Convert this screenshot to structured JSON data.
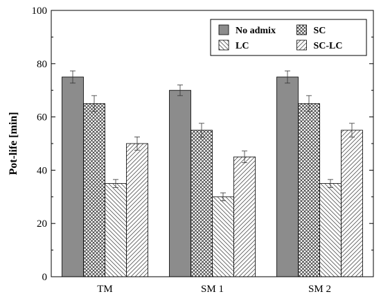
{
  "chart_data": {
    "type": "bar",
    "categories": [
      "TM",
      "SM 1",
      "SM 2"
    ],
    "series": [
      {
        "name": "No admix",
        "values": [
          75,
          70,
          75
        ],
        "errors": [
          2.3,
          2.0,
          2.3
        ],
        "pattern": "solid",
        "color": "#8c8c8c"
      },
      {
        "name": "SC",
        "values": [
          65,
          55,
          65
        ],
        "errors": [
          3.0,
          2.6,
          3.0
        ],
        "pattern": "crosshatch",
        "color": "#333333"
      },
      {
        "name": "LC",
        "values": [
          35,
          30,
          35
        ],
        "errors": [
          1.5,
          1.5,
          1.5
        ],
        "pattern": "backslash",
        "color": "#333333"
      },
      {
        "name": "SC-LC",
        "values": [
          50,
          45,
          55
        ],
        "errors": [
          2.5,
          2.2,
          2.6
        ],
        "pattern": "slash",
        "color": "#333333"
      }
    ],
    "xlabel": "",
    "ylabel": "Pot-life [min]",
    "ylim": [
      0,
      100
    ],
    "yticks": [
      0,
      20,
      40,
      60,
      80,
      100
    ],
    "grid": false,
    "legend_position": "top-right",
    "legend_columns": 2
  }
}
